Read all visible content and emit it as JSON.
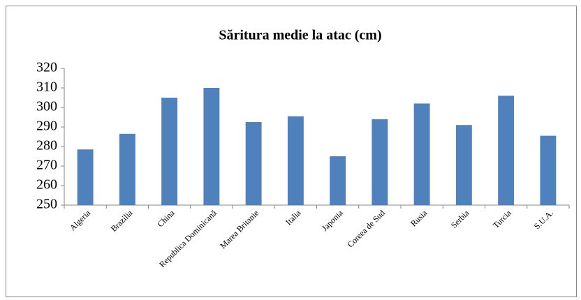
{
  "chart_data": {
    "type": "bar",
    "title": "Săritura medie la atac (cm)",
    "categories": [
      "Algeria",
      "Brazilia",
      "China",
      "Republica Dominicană",
      "Marea Britanie",
      "Italia",
      "Japonia",
      "Coreea de Sud",
      "Rusia",
      "Serbia",
      "Turcia",
      "S.U.A."
    ],
    "values": [
      278.5,
      286.5,
      305,
      310,
      292.5,
      295.5,
      275,
      294,
      302,
      291,
      306,
      285.5
    ],
    "color": "#4f81bd",
    "ylim": [
      250,
      320
    ],
    "yticks": [
      250,
      260,
      270,
      280,
      290,
      300,
      310,
      320
    ],
    "grid": false
  }
}
